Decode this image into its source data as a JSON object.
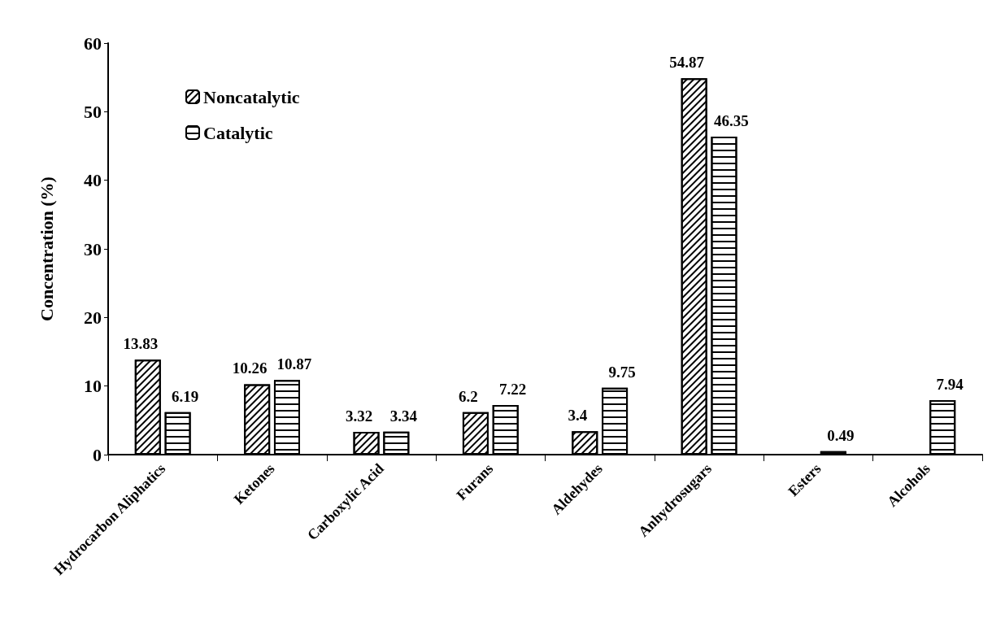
{
  "chart_data": {
    "type": "bar",
    "ylabel": "Concentration (%)",
    "categories": [
      "Hydrocarbon Aliphatics",
      "Ketones",
      "Carboxylic Acid",
      "Furans",
      "Aldehydes",
      "Anhydrosugars",
      "Esters",
      "Alcohols"
    ],
    "series": [
      {
        "name": "Noncatalytic",
        "color": "#000000",
        "values": [
          13.83,
          10.26,
          3.32,
          6.2,
          3.4,
          54.87,
          null,
          null
        ]
      },
      {
        "name": "Catalytic",
        "color": "#000000",
        "values": [
          6.19,
          10.87,
          3.34,
          7.22,
          9.75,
          46.35,
          0.49,
          7.94
        ]
      }
    ],
    "ylim": [
      0,
      60
    ],
    "yticks": [
      0,
      10,
      20,
      30,
      40,
      50,
      60
    ],
    "grid": false,
    "legend": "top left",
    "data_labels": true
  }
}
